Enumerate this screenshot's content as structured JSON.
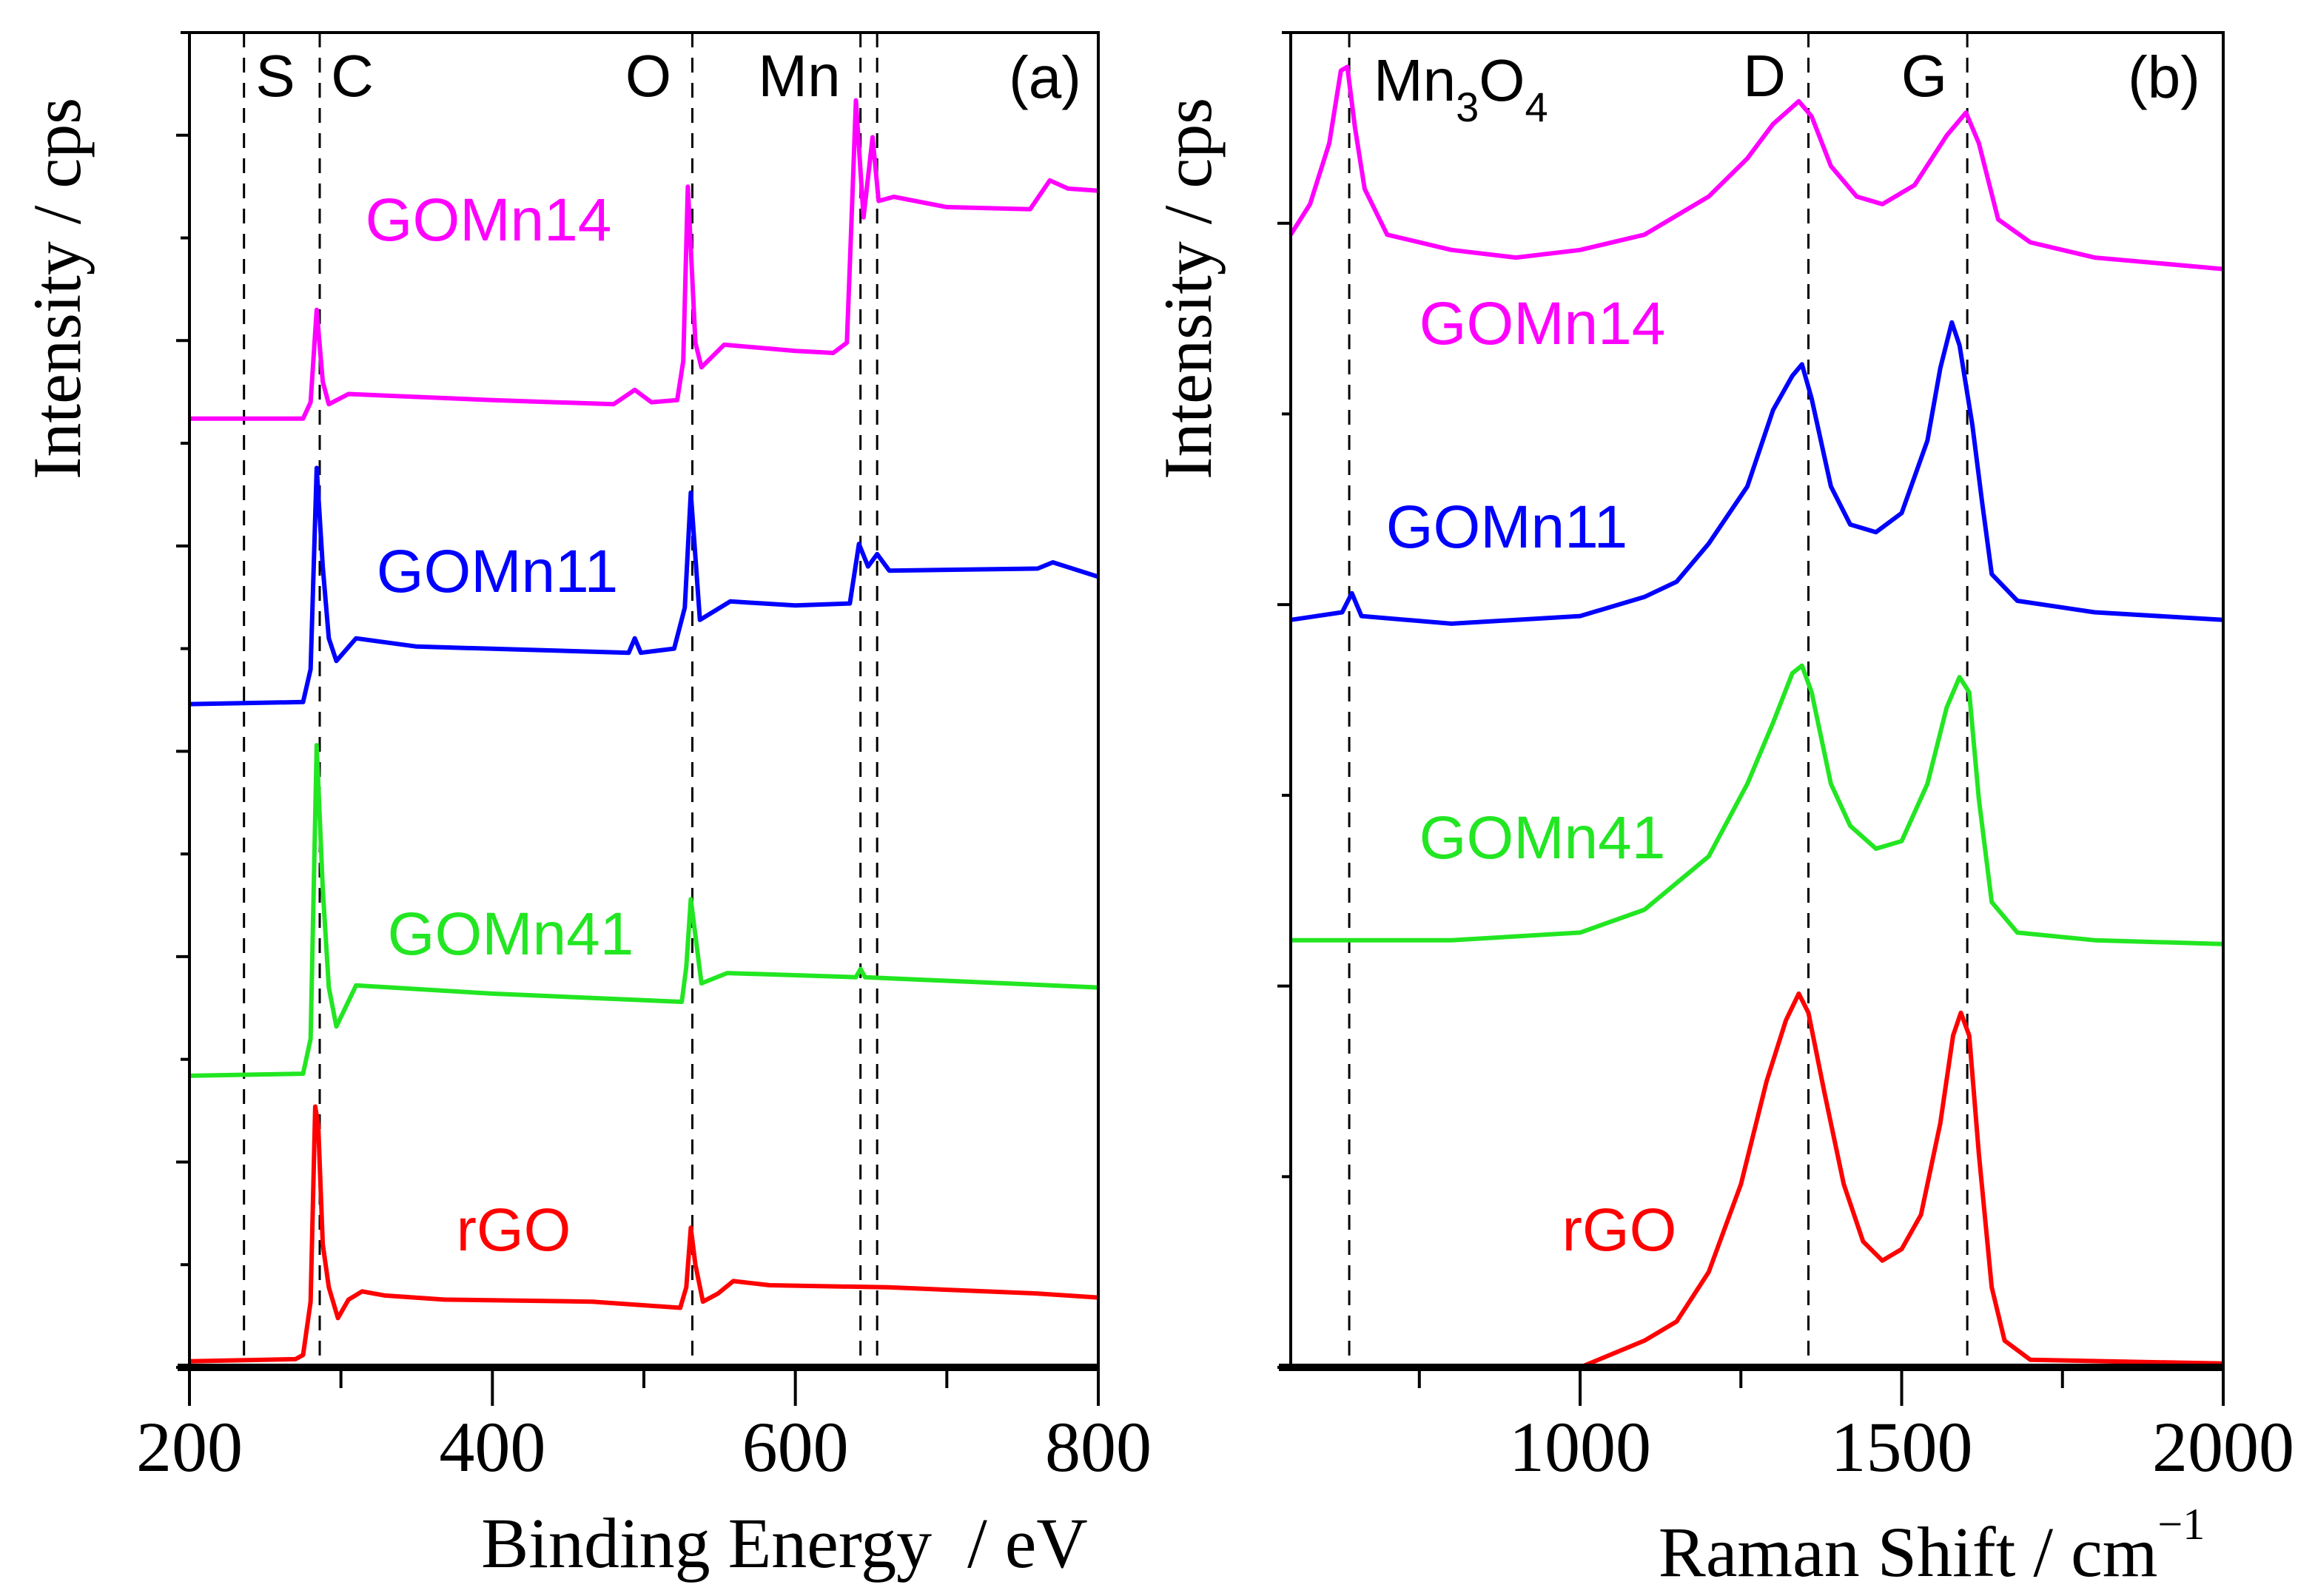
{
  "chart_data": [
    {
      "type": "line",
      "panel_label": "(a)",
      "xlabel": "Binding Energy  / eV",
      "ylabel": "Intensity / cps",
      "xlim": [
        200,
        800
      ],
      "ylim": [
        0,
        6.5
      ],
      "x_ticks": [
        "200",
        "400",
        "600",
        "800"
      ],
      "x_tick_values": [
        200,
        400,
        600,
        800
      ],
      "x_minor_ticks": [
        300,
        500,
        700
      ],
      "y_tick_labels": "none",
      "grid": false,
      "reference_lines": [
        {
          "x": 236,
          "label": "S"
        },
        {
          "x": 286,
          "label": "C"
        },
        {
          "x": 532,
          "label": "O"
        },
        {
          "x": 643,
          "label": "Mn"
        },
        {
          "x": 654,
          "label": ""
        }
      ],
      "series": [
        {
          "name": "GOMn14",
          "color": "#ff00ff",
          "x": [
            200,
            275,
            280,
            284,
            288,
            292,
            305,
            400,
            480,
            494,
            505,
            522,
            526,
            529,
            534,
            538,
            553,
            600,
            625,
            634,
            637,
            640,
            645,
            651,
            655,
            665,
            700,
            755,
            768,
            780,
            800
          ],
          "y": [
            4.62,
            4.62,
            4.7,
            5.15,
            4.8,
            4.69,
            4.74,
            4.71,
            4.69,
            4.76,
            4.7,
            4.71,
            4.9,
            5.75,
            4.99,
            4.87,
            4.98,
            4.95,
            4.94,
            4.99,
            5.57,
            6.17,
            5.6,
            5.99,
            5.68,
            5.7,
            5.65,
            5.64,
            5.78,
            5.74,
            5.73
          ]
        },
        {
          "name": "GOMn11",
          "color": "#0000ff",
          "x": [
            200,
            275,
            280,
            284,
            288,
            292,
            297,
            310,
            350,
            490,
            494,
            498,
            520,
            527,
            531,
            537,
            557,
            600,
            636,
            642,
            648,
            654,
            662,
            760,
            770,
            800
          ],
          "y": [
            3.23,
            3.24,
            3.4,
            4.38,
            3.9,
            3.55,
            3.44,
            3.55,
            3.51,
            3.48,
            3.55,
            3.48,
            3.5,
            3.7,
            4.26,
            3.64,
            3.73,
            3.71,
            3.72,
            4.01,
            3.9,
            3.96,
            3.88,
            3.89,
            3.92,
            3.85
          ]
        },
        {
          "name": "GOMn41",
          "color": "#22e622",
          "x": [
            200,
            275,
            280,
            284,
            288,
            292,
            297,
            310,
            400,
            525,
            528,
            531,
            538,
            555,
            640,
            643,
            646,
            800
          ],
          "y": [
            1.42,
            1.43,
            1.6,
            3.03,
            2.33,
            1.85,
            1.66,
            1.86,
            1.82,
            1.78,
            1.95,
            2.28,
            1.87,
            1.92,
            1.9,
            1.94,
            1.9,
            1.85
          ]
        },
        {
          "name": "rGO",
          "color": "#ff0000",
          "x": [
            200,
            270,
            275,
            280,
            283,
            285,
            288,
            292,
            298,
            305,
            314,
            329,
            368,
            466,
            524,
            528,
            531,
            534,
            539,
            549,
            559,
            583,
            661,
            759,
            800
          ],
          "y": [
            0.03,
            0.04,
            0.06,
            0.32,
            1.27,
            1.18,
            0.6,
            0.39,
            0.24,
            0.33,
            0.37,
            0.35,
            0.33,
            0.32,
            0.29,
            0.39,
            0.68,
            0.5,
            0.32,
            0.36,
            0.42,
            0.4,
            0.39,
            0.36,
            0.34
          ]
        }
      ]
    },
    {
      "type": "line",
      "panel_label": "(b)",
      "xlabel": "Raman Shift / cm",
      "xlabel_superscript": "−1",
      "ylabel": "Intensity / cps",
      "xlim": [
        550,
        2000
      ],
      "ylim": [
        0,
        3.5
      ],
      "x_ticks": [
        "1000",
        "1500",
        "2000"
      ],
      "x_tick_values": [
        1000,
        1500,
        2000
      ],
      "x_minor_ticks": [
        750,
        1250,
        1750
      ],
      "y_tick_labels": "none",
      "grid": false,
      "reference_lines": [
        {
          "x": 641,
          "label": "Mn3O4",
          "label_main": "Mn",
          "label_sub1": "3",
          "label_mid": "O",
          "label_sub2": "4"
        },
        {
          "x": 1355,
          "label": "D"
        },
        {
          "x": 1602,
          "label": "G"
        }
      ],
      "series": [
        {
          "name": "GOMn14",
          "color": "#ff00ff",
          "x": [
            550,
            580,
            610,
            628,
            638,
            650,
            665,
            700,
            800,
            900,
            1000,
            1100,
            1200,
            1260,
            1300,
            1340,
            1360,
            1390,
            1430,
            1470,
            1520,
            1570,
            1600,
            1620,
            1650,
            1700,
            1800,
            2000
          ],
          "y": [
            2.97,
            3.05,
            3.21,
            3.4,
            3.41,
            3.25,
            3.09,
            2.97,
            2.93,
            2.91,
            2.93,
            2.97,
            3.07,
            3.17,
            3.26,
            3.32,
            3.28,
            3.15,
            3.07,
            3.05,
            3.1,
            3.23,
            3.29,
            3.21,
            3.01,
            2.95,
            2.91,
            2.88
          ]
        },
        {
          "name": "GOMn11",
          "color": "#0000ff",
          "x": [
            550,
            630,
            645,
            660,
            800,
            1000,
            1100,
            1150,
            1200,
            1260,
            1300,
            1330,
            1345,
            1360,
            1390,
            1420,
            1460,
            1500,
            1540,
            1560,
            1578,
            1590,
            1610,
            1625,
            1640,
            1680,
            1800,
            2000
          ],
          "y": [
            1.96,
            1.98,
            2.03,
            1.97,
            1.95,
            1.97,
            2.02,
            2.06,
            2.16,
            2.31,
            2.51,
            2.6,
            2.63,
            2.54,
            2.31,
            2.21,
            2.19,
            2.24,
            2.43,
            2.62,
            2.74,
            2.68,
            2.47,
            2.27,
            2.08,
            2.01,
            1.98,
            1.96
          ]
        },
        {
          "name": "GOMn41",
          "color": "#22e622",
          "x": [
            550,
            800,
            1000,
            1100,
            1200,
            1260,
            1300,
            1330,
            1345,
            1360,
            1390,
            1420,
            1460,
            1500,
            1540,
            1570,
            1590,
            1605,
            1620,
            1640,
            1680,
            1800,
            2000
          ],
          "y": [
            1.12,
            1.12,
            1.14,
            1.2,
            1.34,
            1.53,
            1.69,
            1.82,
            1.84,
            1.77,
            1.53,
            1.42,
            1.36,
            1.38,
            1.53,
            1.73,
            1.81,
            1.77,
            1.49,
            1.22,
            1.14,
            1.12,
            1.11
          ]
        },
        {
          "name": "rGO",
          "color": "#ff0000",
          "x": [
            1000,
            1100,
            1150,
            1200,
            1250,
            1290,
            1320,
            1340,
            1355,
            1380,
            1410,
            1440,
            1470,
            1500,
            1530,
            1560,
            1580,
            1592,
            1605,
            1620,
            1640,
            1660,
            1700,
            2000
          ],
          "y": [
            0.0,
            0.07,
            0.12,
            0.25,
            0.48,
            0.75,
            0.91,
            0.98,
            0.93,
            0.72,
            0.48,
            0.33,
            0.28,
            0.31,
            0.4,
            0.64,
            0.87,
            0.93,
            0.87,
            0.56,
            0.21,
            0.07,
            0.02,
            0.01
          ]
        }
      ]
    }
  ]
}
